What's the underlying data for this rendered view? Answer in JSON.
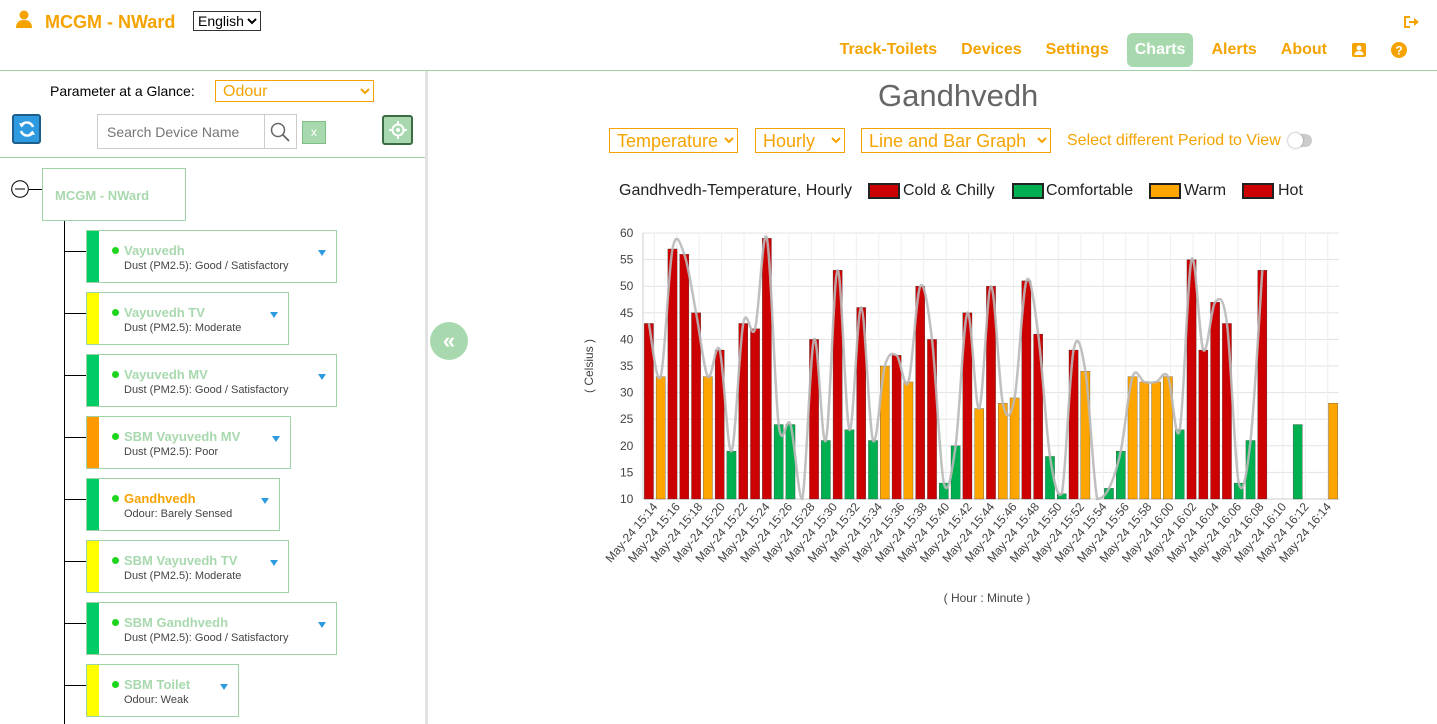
{
  "header": {
    "brand": "MCGM - NWard",
    "language": "English",
    "nav": [
      {
        "label": "Track-Toilets"
      },
      {
        "label": "Devices"
      },
      {
        "label": "Settings"
      },
      {
        "label": "Charts",
        "active": true
      },
      {
        "label": "Alerts"
      },
      {
        "label": "About"
      }
    ],
    "icons": [
      "user-icon",
      "logout-icon",
      "contact-card-icon",
      "help-icon"
    ]
  },
  "left_panel": {
    "param_label": "Parameter at a Glance:",
    "param_value": "Odour",
    "search_placeholder": "Search Device Name",
    "clear_label": "x",
    "root": "MCGM - NWard",
    "devices": [
      {
        "name": "Vayuvedh",
        "status": "Dust (PM2.5): Good / Satisfactory",
        "color": "#00cc66"
      },
      {
        "name": "Vayuvedh TV",
        "status": "Dust (PM2.5): Moderate",
        "color": "#ffff00"
      },
      {
        "name": "Vayuvedh MV",
        "status": "Dust (PM2.5): Good / Satisfactory",
        "color": "#00cc66"
      },
      {
        "name": "SBM Vayuvedh MV",
        "status": "Dust (PM2.5): Poor",
        "color": "#ff9900"
      },
      {
        "name": "Gandhvedh",
        "status": "Odour: Barely Sensed",
        "color": "#00cc66",
        "selected": true
      },
      {
        "name": "SBM Vayuvedh TV",
        "status": "Dust (PM2.5): Moderate",
        "color": "#ffff00"
      },
      {
        "name": "SBM Gandhvedh",
        "status": "Dust (PM2.5): Good / Satisfactory",
        "color": "#00cc66"
      },
      {
        "name": "SBM Toilet",
        "status": "Odour: Weak",
        "color": "#ffff00"
      }
    ]
  },
  "main": {
    "title": "Gandhvedh",
    "parameter": "Temperature",
    "interval": "Hourly",
    "graph_type": "Line and Bar Graph",
    "period_label": "Select different Period to View",
    "collapse_label": "«"
  },
  "colors": {
    "accent": "#f5a300",
    "green_ui": "#a8d9ae",
    "cold": "#cc0000",
    "comfortable": "#00b050",
    "warm": "#ffa500",
    "hot": "#cc0000"
  },
  "chart_data": {
    "type": "bar",
    "title": "Gandhvedh-Temperature, Hourly",
    "legend": [
      {
        "label": "Cold & Chilly",
        "color": "#cc0000"
      },
      {
        "label": "Comfortable",
        "color": "#00b050"
      },
      {
        "label": "Warm",
        "color": "#ffa500"
      },
      {
        "label": "Hot",
        "color": "#cc0000"
      }
    ],
    "ylabel": "( Celsius )",
    "xlabel": "( Hour : Minute )",
    "ylim": [
      10,
      60
    ],
    "yticks": [
      10,
      15,
      20,
      25,
      30,
      35,
      40,
      45,
      50,
      55,
      60
    ],
    "xticks": [
      "May-24 15:14",
      "May-24 15:16",
      "May-24 15:18",
      "May-24 15:20",
      "May-24 15:22",
      "May-24 15:24",
      "May-24 15:26",
      "May-24 15:28",
      "May-24 15:30",
      "May-24 15:32",
      "May-24 15:34",
      "May-24 15:36",
      "May-24 15:38",
      "May-24 15:40",
      "May-24 15:42",
      "May-24 15:44",
      "May-24 15:46",
      "May-24 15:48",
      "May-24 15:50",
      "May-24 15:52",
      "May-24 15:54",
      "May-24 15:56",
      "May-24 15:58",
      "May-24 16:00",
      "May-24 16:02",
      "May-24 16:04",
      "May-24 16:06",
      "May-24 16:08",
      "May-24 16:10",
      "May-24 16:12",
      "May-24 16:14"
    ],
    "values": [
      43,
      33,
      57,
      56,
      45,
      33,
      38,
      19,
      43,
      42,
      59,
      24,
      24,
      10,
      40,
      21,
      53,
      23,
      46,
      21,
      35,
      37,
      32,
      50,
      40,
      13,
      20,
      45,
      27,
      50,
      28,
      29,
      51,
      41,
      18,
      11,
      38,
      34,
      10,
      12,
      19,
      33,
      32,
      32,
      33,
      23,
      55,
      38,
      47,
      43,
      13,
      21,
      53,
      null,
      null,
      24,
      null,
      null,
      28
    ],
    "categories": [
      "hot",
      "warm",
      "hot",
      "hot",
      "hot",
      "warm",
      "hot",
      "comfortable",
      "hot",
      "hot",
      "hot",
      "comfortable",
      "comfortable",
      "comfortable",
      "hot",
      "comfortable",
      "hot",
      "comfortable",
      "hot",
      "comfortable",
      "warm",
      "hot",
      "warm",
      "hot",
      "hot",
      "comfortable",
      "comfortable",
      "hot",
      "warm",
      "hot",
      "warm",
      "warm",
      "hot",
      "hot",
      "comfortable",
      "comfortable",
      "hot",
      "warm",
      "comfortable",
      "comfortable",
      "comfortable",
      "warm",
      "warm",
      "warm",
      "warm",
      "comfortable",
      "hot",
      "hot",
      "hot",
      "hot",
      "comfortable",
      "comfortable",
      "hot",
      null,
      null,
      "comfortable",
      null,
      null,
      "warm"
    ],
    "line": true,
    "grid": true
  }
}
